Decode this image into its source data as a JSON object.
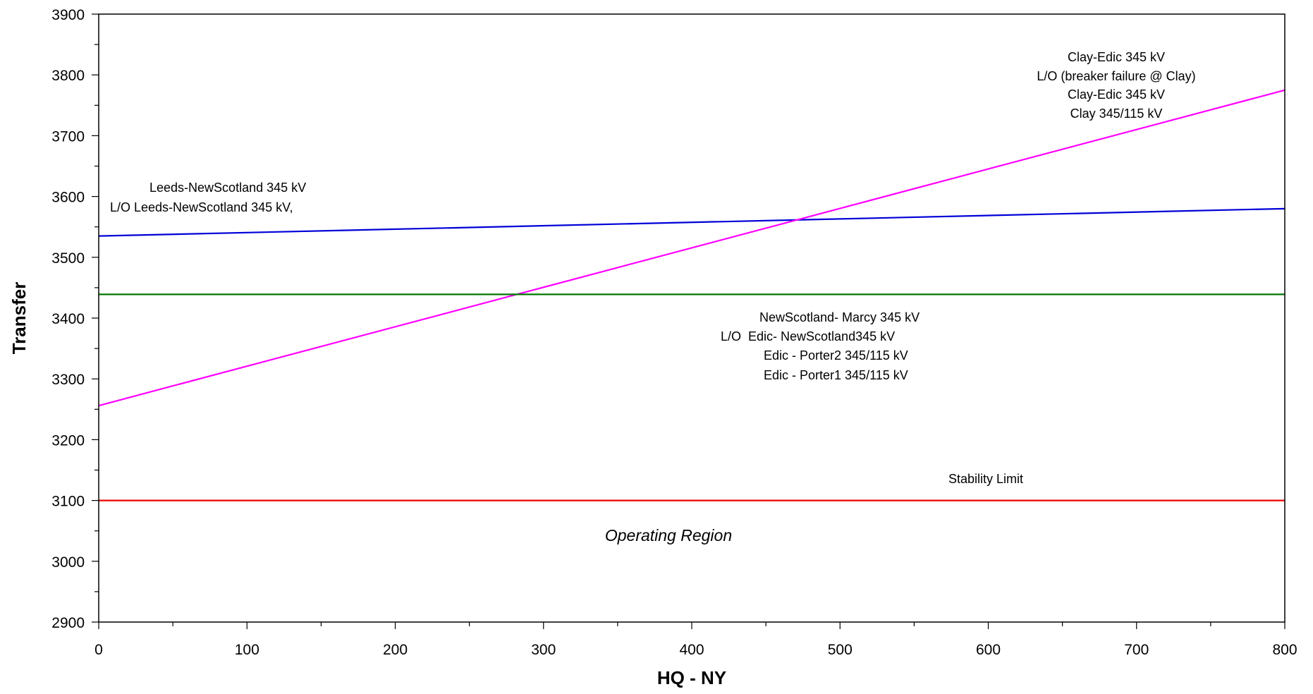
{
  "chart_data": {
    "type": "line",
    "title": "",
    "xlabel": "HQ - NY",
    "ylabel": "Transfer",
    "xlim": [
      0,
      800
    ],
    "ylim": [
      2900,
      3900
    ],
    "x_ticks": [
      0,
      100,
      200,
      300,
      400,
      500,
      600,
      700,
      800
    ],
    "y_ticks": [
      2900,
      3000,
      3100,
      3200,
      3300,
      3400,
      3500,
      3600,
      3700,
      3800,
      3900
    ],
    "grid": false,
    "legend": "none",
    "series": [
      {
        "color": "#0000d8",
        "x": [
          0,
          800
        ],
        "y": [
          3535,
          3580
        ]
      },
      {
        "color": "#ff00ff",
        "x": [
          0,
          800
        ],
        "y": [
          3256,
          3775
        ]
      },
      {
        "color": "#007700",
        "x": [
          0,
          800
        ],
        "y": [
          3439,
          3439
        ]
      },
      {
        "color": "#ee0000",
        "x": [
          0,
          800
        ],
        "y": [
          3100,
          3100
        ]
      }
    ],
    "annotations": [
      {
        "lines": [
          "Clay-Edic 345 kV",
          "L/O (breaker failure @ Clay)",
          "Clay-Edic 345 kV",
          "Clay 345/115 kV"
        ]
      },
      {
        "lines": [
          "Leeds-NewScotland 345 kV",
          "L/O Leeds-NewScotland 345 kV,"
        ]
      },
      {
        "lines": [
          "NewScotland- Marcy 345 kV",
          "L/O  Edic- NewScotland345 kV",
          "Edic - Porter2 345/115 kV",
          "Edic - Porter1 345/115 kV"
        ]
      },
      {
        "lines": [
          "Stability Limit"
        ]
      },
      {
        "lines": [
          "Operating Region"
        ]
      }
    ]
  }
}
